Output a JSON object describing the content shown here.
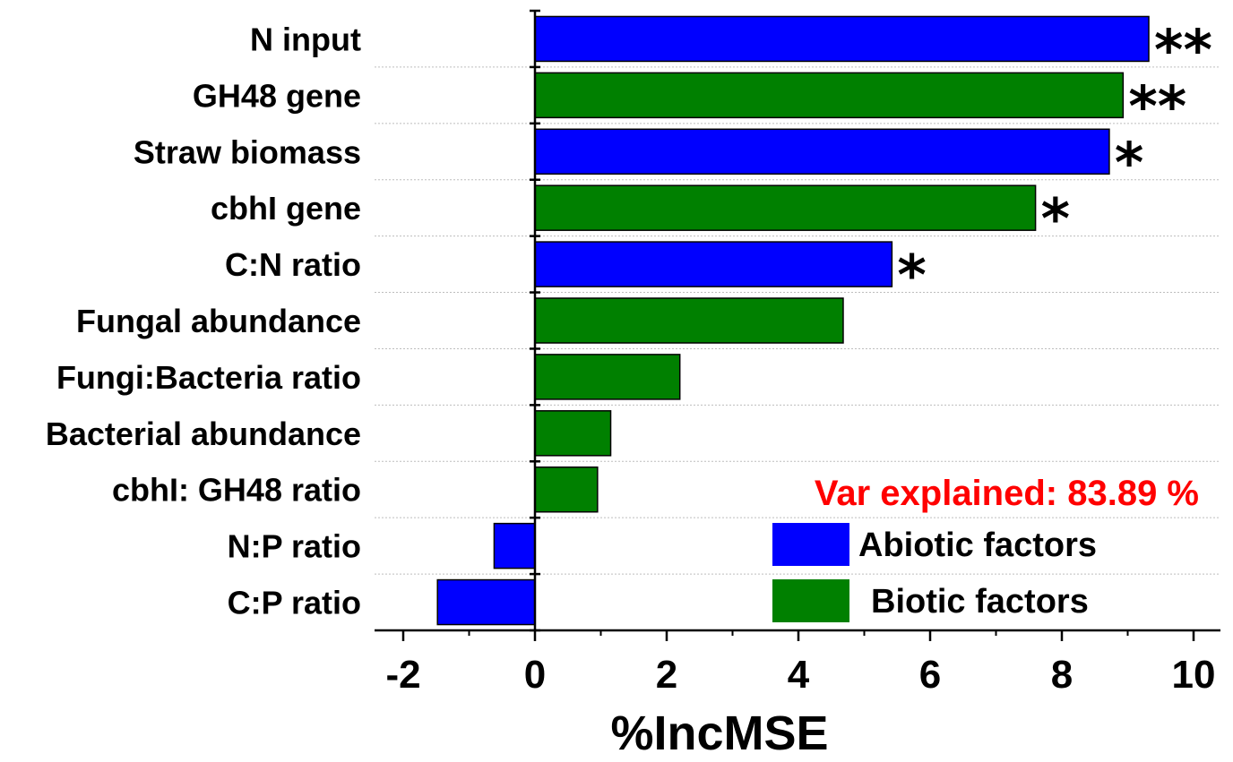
{
  "chart_data": {
    "type": "bar",
    "orientation": "horizontal",
    "xlabel": "%IncMSE",
    "xlim": [
      -2,
      10
    ],
    "xticks": [
      -2,
      0,
      2,
      4,
      6,
      8,
      10
    ],
    "grid": "horizontal dotted lines between categories",
    "categories": [
      "N input",
      "GH48 gene",
      "Straw biomass",
      "cbhI gene",
      "C:N ratio",
      "Fungal abundance",
      "Fungi:Bacteria ratio",
      "Bacterial abundance",
      "cbhI: GH48 ratio",
      "N:P ratio",
      "C:P ratio"
    ],
    "values": [
      9.32,
      8.93,
      8.72,
      7.6,
      5.42,
      4.68,
      2.2,
      1.15,
      0.95,
      -0.62,
      -1.48
    ],
    "groups": [
      "abiotic",
      "biotic",
      "abiotic",
      "biotic",
      "abiotic",
      "biotic",
      "biotic",
      "biotic",
      "biotic",
      "abiotic",
      "abiotic"
    ],
    "significance": [
      "**",
      "**",
      "*",
      "*",
      "*",
      "",
      "",
      "",
      "",
      "",
      ""
    ],
    "annotation": "Var explained: 83.89 %",
    "annotation_color": "#ff0000",
    "legend": {
      "placement": "bottom-right",
      "entries": [
        {
          "key": "abiotic",
          "label": "Abiotic factors",
          "color": "#0000ff"
        },
        {
          "key": "biotic",
          "label": "Biotic factors",
          "color": "#008000"
        }
      ]
    }
  }
}
